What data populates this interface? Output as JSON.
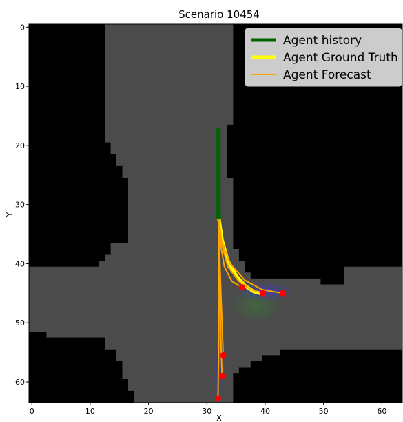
{
  "chart_data": {
    "type": "line",
    "title": "Scenario 10454",
    "xlabel": "X",
    "ylabel": "Y",
    "xlim": [
      -0.5,
      63.5
    ],
    "ylim": [
      63.5,
      -0.5
    ],
    "xticks": [
      0,
      10,
      20,
      30,
      40,
      50,
      60
    ],
    "yticks": [
      0,
      10,
      20,
      30,
      40,
      50,
      60
    ],
    "background": {
      "description": "occupancy map",
      "road_color": "#4b4b4b",
      "offroad_color": "#000000",
      "road_regions": [
        {
          "x": [
            12.5,
            34.5
          ],
          "y": [
            -0.5,
            63.5
          ]
        },
        {
          "x": [
            -0.5,
            63.5
          ],
          "y": [
            40.5,
            50.5
          ]
        }
      ]
    },
    "legend": {
      "placement": "top-right",
      "entries": [
        {
          "label": "Agent history",
          "color": "#006400"
        },
        {
          "label": "Agent Ground Truth",
          "color": "#ffff00"
        },
        {
          "label": "Agent Forecast",
          "color": "#ffa500"
        }
      ]
    },
    "series": [
      {
        "name": "Agent history",
        "color": "#006400",
        "x": [
          32,
          32,
          32,
          32,
          32,
          32
        ],
        "y": [
          17,
          20,
          24,
          27,
          30,
          32
        ]
      },
      {
        "name": "Agent Ground Truth",
        "color": "#ffff00",
        "x": [
          32,
          32.6,
          33.6,
          35,
          36.5,
          38,
          39.5
        ],
        "y": [
          32,
          36,
          39.5,
          42,
          43.7,
          44.7,
          45.1
        ]
      },
      {
        "name": "Agent Forecast",
        "color": "#ffa500",
        "x": [
          32,
          32.5,
          34,
          36.5,
          39.5,
          43
        ],
        "y": [
          32,
          36,
          40,
          42.8,
          44.4,
          45
        ]
      },
      {
        "name": "Agent Forecast",
        "color": "#ffa500",
        "x": [
          32,
          32.5,
          33.6,
          35.5,
          37.6,
          39.6
        ],
        "y": [
          32,
          36.5,
          40.5,
          43,
          44.4,
          45
        ]
      },
      {
        "name": "Agent Forecast",
        "color": "#ffa500",
        "x": [
          32,
          32.3,
          33,
          34.3,
          36
        ],
        "y": [
          32,
          36.5,
          40.5,
          43,
          44
        ]
      },
      {
        "name": "Agent Forecast",
        "color": "#ffa500",
        "x": [
          32,
          32.3,
          32.6,
          32.8
        ],
        "y": [
          32,
          42,
          50,
          55.5
        ]
      },
      {
        "name": "Agent Forecast",
        "color": "#ffa500",
        "x": [
          32,
          32.2,
          32.4,
          32.6
        ],
        "y": [
          32,
          44,
          53,
          59
        ]
      },
      {
        "name": "Agent Forecast",
        "color": "#ffa500",
        "x": [
          32,
          32.1,
          32,
          31.9
        ],
        "y": [
          32,
          46,
          56,
          62.8
        ]
      }
    ],
    "endpoints": {
      "color": "#ff0000",
      "points": [
        {
          "x": 43,
          "y": 45
        },
        {
          "x": 39.6,
          "y": 45
        },
        {
          "x": 36,
          "y": 44
        },
        {
          "x": 32.8,
          "y": 55.5
        },
        {
          "x": 32.6,
          "y": 59
        },
        {
          "x": 31.9,
          "y": 62.8
        }
      ]
    }
  }
}
